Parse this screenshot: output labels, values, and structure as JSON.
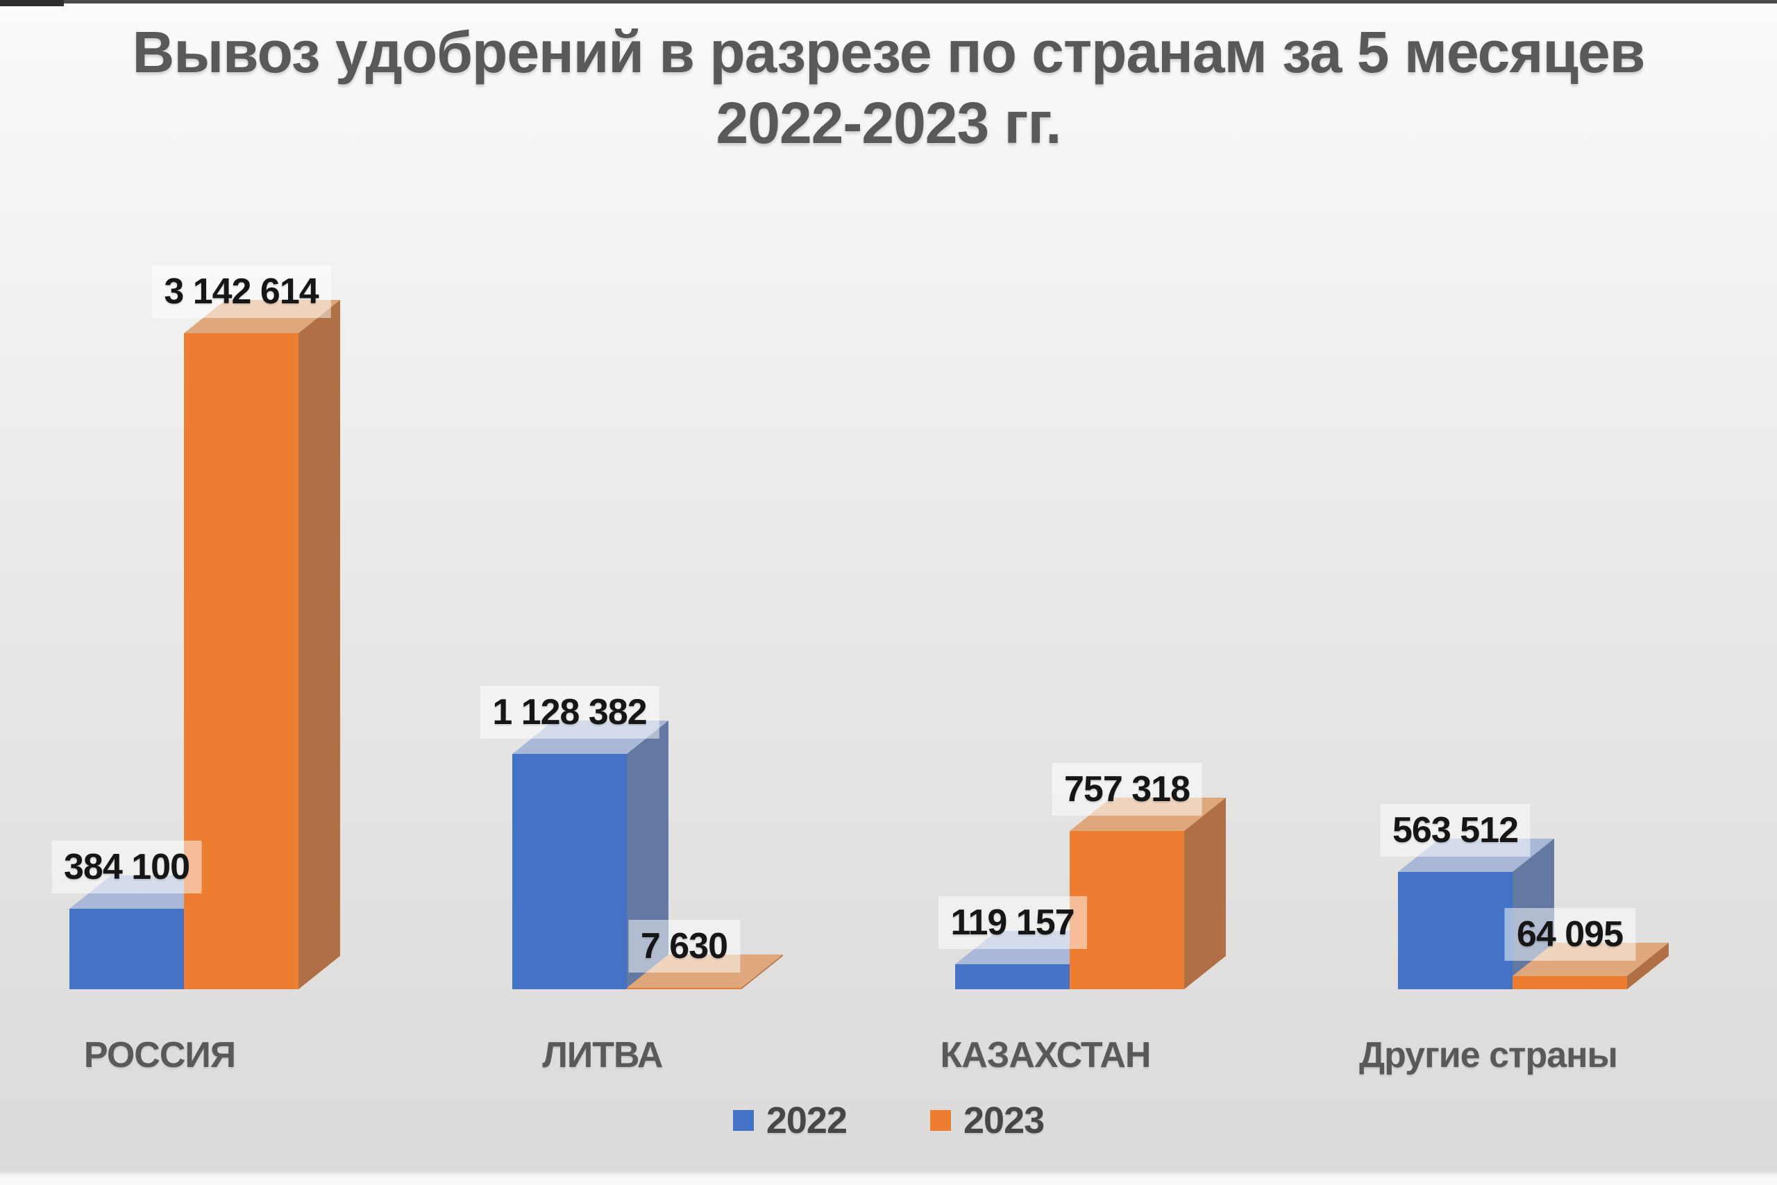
{
  "title": {
    "line1": "Вывоз удобрений в разрезе по странам за 5 месяцев",
    "line2": "2022-2023 гг."
  },
  "chart_data": {
    "type": "bar",
    "style": "3d-clustered",
    "title": "Вывоз удобрений в разрезе по странам за 5 месяцев 2022-2023 гг.",
    "categories": [
      "РОССИЯ",
      "ЛИТВА",
      "КАЗАХСТАН",
      "Другие страны"
    ],
    "series": [
      {
        "name": "2022",
        "color": "#4472C4",
        "color_dark": "#6379A2",
        "color_light": "#A9B8D6",
        "values": [
          384100,
          1128382,
          119157,
          563512
        ],
        "value_labels": [
          "384 100",
          "1 128 382",
          "119 157",
          "563 512"
        ]
      },
      {
        "name": "2023",
        "color": "#ED7D31",
        "color_dark": "#B06F44",
        "color_light": "#DFA87C",
        "values": [
          3142614,
          7630,
          757318,
          64095
        ],
        "value_labels": [
          "3 142 614",
          "7 630",
          "757 318",
          "64 095"
        ]
      }
    ],
    "xlabel": "",
    "ylabel": "",
    "ylim": [
      0,
      3142614
    ],
    "grid": false,
    "legend_position": "bottom",
    "data_labels": true,
    "label_background": "rgba(255,255,255,0.5)",
    "text_color_title": "#595959",
    "text_color_values": "#161616"
  },
  "legend": {
    "items": [
      {
        "label": "2022",
        "color": "#4472C4"
      },
      {
        "label": "2023",
        "color": "#ED7D31"
      }
    ]
  }
}
